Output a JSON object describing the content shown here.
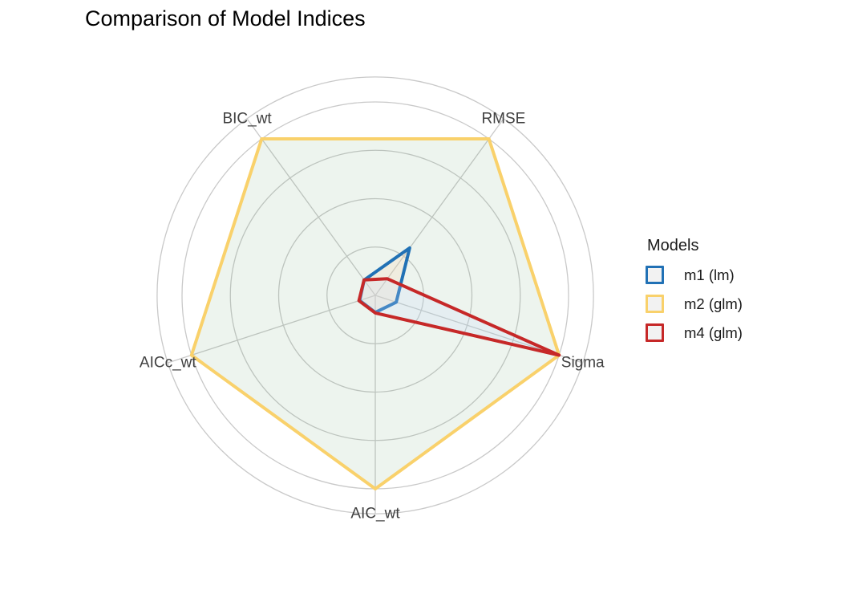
{
  "title": "Comparison of Model Indices",
  "legend": {
    "title": "Models",
    "items": [
      {
        "label": "m1 (lm)",
        "color": "#2171b5"
      },
      {
        "label": "m2 (glm)",
        "color": "#f9d16b"
      },
      {
        "label": "m4 (glm)",
        "color": "#c62828"
      }
    ]
  },
  "chart_data": {
    "type": "radar",
    "title": "Comparison of Model Indices",
    "axes": [
      "AIC_wt",
      "AICc_wt",
      "BIC_wt",
      "RMSE",
      "Sigma"
    ],
    "axis_angles_deg": [
      270,
      198,
      126,
      54,
      342
    ],
    "radial_range": [
      0,
      1
    ],
    "radial_ticks": [
      0.25,
      0.5,
      0.75,
      1.0
    ],
    "gridline_radii_frac": [
      0.25,
      0.5,
      0.75,
      1.0,
      1.129
    ],
    "grid": true,
    "legend_position": "right",
    "legend_title": "Models",
    "series": [
      {
        "name": "m1 (lm)",
        "stroke": "#2171b5",
        "fill": "rgba(250,215,180,0.25)",
        "values": [
          0.088,
          0.085,
          0.098,
          0.303,
          0.114
        ]
      },
      {
        "name": "m2 (glm)",
        "stroke": "#f9d16b",
        "fill": "rgba(105,163,113,0.12)",
        "values": [
          1.0,
          1.0,
          1.0,
          1.0,
          1.0
        ]
      },
      {
        "name": "m4 (glm)",
        "stroke": "#c62828",
        "fill": "rgba(200,220,255,0.22)",
        "values": [
          0.091,
          0.089,
          0.099,
          0.106,
          1.0
        ]
      }
    ],
    "colors": {
      "grid": "#c9c9c9",
      "axis_label": "#404040",
      "background": "#ffffff"
    }
  }
}
